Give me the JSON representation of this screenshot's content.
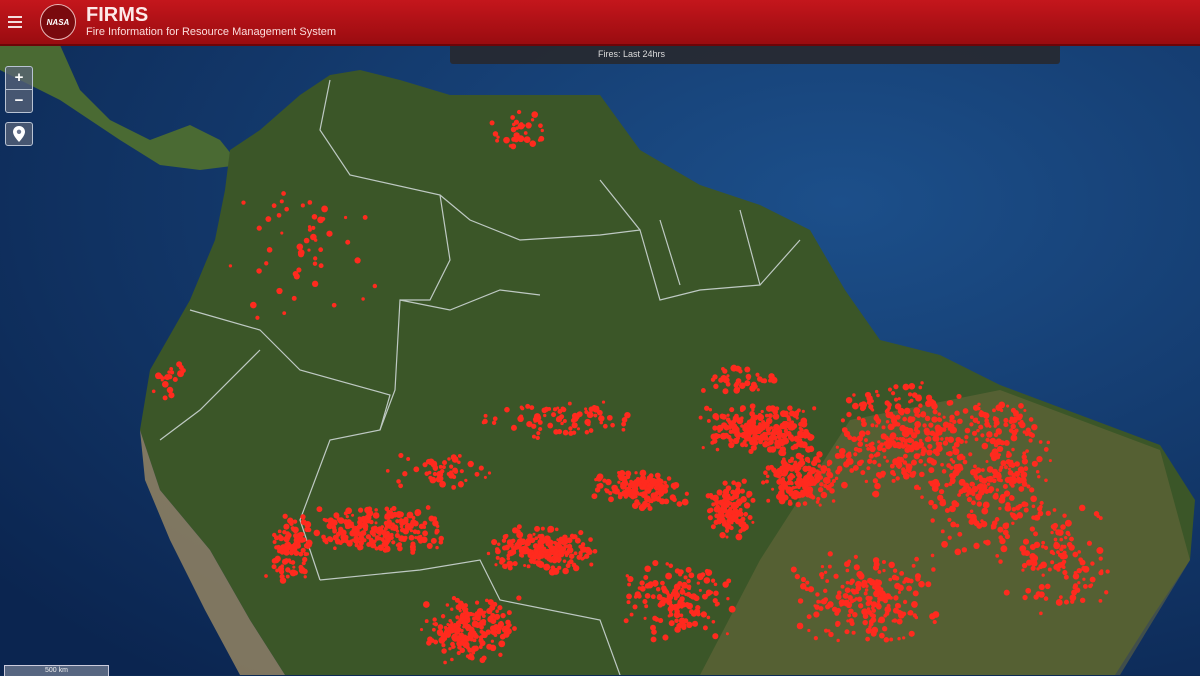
{
  "header": {
    "menu_icon": "hamburger-icon",
    "logo_text": "NASA",
    "title": "FIRMS",
    "subtitle": "Fire Information for Resource Management System"
  },
  "status": {
    "label": "Fires: Last 24hrs"
  },
  "controls": {
    "zoom_in": "+",
    "zoom_out": "−",
    "locate_icon": "map-pin-icon"
  },
  "scale": {
    "label": "500 km"
  },
  "colors": {
    "header": "#b51217",
    "fire": "#ff2a1e",
    "ocean": "#0c2a55",
    "land": "#3d5a2a"
  }
}
